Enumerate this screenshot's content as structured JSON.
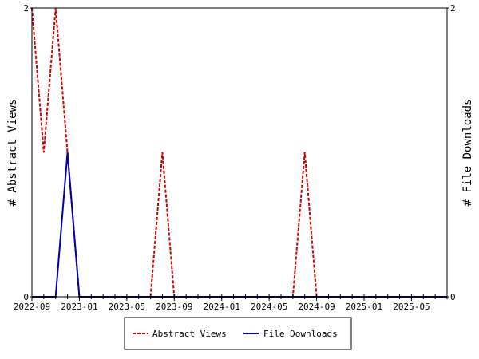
{
  "chart_data": {
    "type": "line",
    "title": "",
    "x_type": "date",
    "x": [
      "2022-09",
      "2022-10",
      "2022-11",
      "2022-12",
      "2023-01",
      "2023-02",
      "2023-03",
      "2023-04",
      "2023-05",
      "2023-06",
      "2023-07",
      "2023-08",
      "2023-09",
      "2023-10",
      "2023-11",
      "2023-12",
      "2024-01",
      "2024-02",
      "2024-03",
      "2024-04",
      "2024-05",
      "2024-06",
      "2024-07",
      "2024-08",
      "2024-09",
      "2024-10",
      "2024-11",
      "2024-12",
      "2025-01",
      "2025-02",
      "2025-03",
      "2025-04",
      "2025-05",
      "2025-06",
      "2025-07",
      "2025-08"
    ],
    "xlim": [
      "2022-09",
      "2025-08"
    ],
    "x_ticks": [
      "2022-09",
      "2023-01",
      "2023-05",
      "2023-09",
      "2024-01",
      "2024-05",
      "2024-09",
      "2025-01",
      "2025-05"
    ],
    "ylabel_left": "# Abstract Views",
    "ylabel_right": "# File Downloads",
    "ylim_left": [
      0,
      2
    ],
    "ylim_right": [
      0,
      2
    ],
    "y_ticks_left": [
      "0",
      "2"
    ],
    "y_ticks_right": [
      "0",
      "2"
    ],
    "grid": false,
    "legend_position": "bottom",
    "series": [
      {
        "name": "Abstract Views",
        "axis": "left",
        "color": "#cc0000",
        "style": "dashed",
        "values": [
          2,
          1,
          2,
          1,
          0,
          0,
          0,
          0,
          0,
          0,
          0,
          1,
          0,
          0,
          0,
          0,
          0,
          0,
          0,
          0,
          0,
          0,
          0,
          1,
          0,
          0,
          0,
          0,
          0,
          0,
          0,
          0,
          0,
          0,
          0,
          0
        ]
      },
      {
        "name": "File Downloads",
        "axis": "right",
        "color": "#0000aa",
        "style": "solid",
        "values": [
          0,
          0,
          0,
          1,
          0,
          0,
          0,
          0,
          0,
          0,
          0,
          0,
          0,
          0,
          0,
          0,
          0,
          0,
          0,
          0,
          0,
          0,
          0,
          0,
          0,
          0,
          0,
          0,
          0,
          0,
          0,
          0,
          0,
          0,
          0,
          0
        ]
      }
    ]
  }
}
